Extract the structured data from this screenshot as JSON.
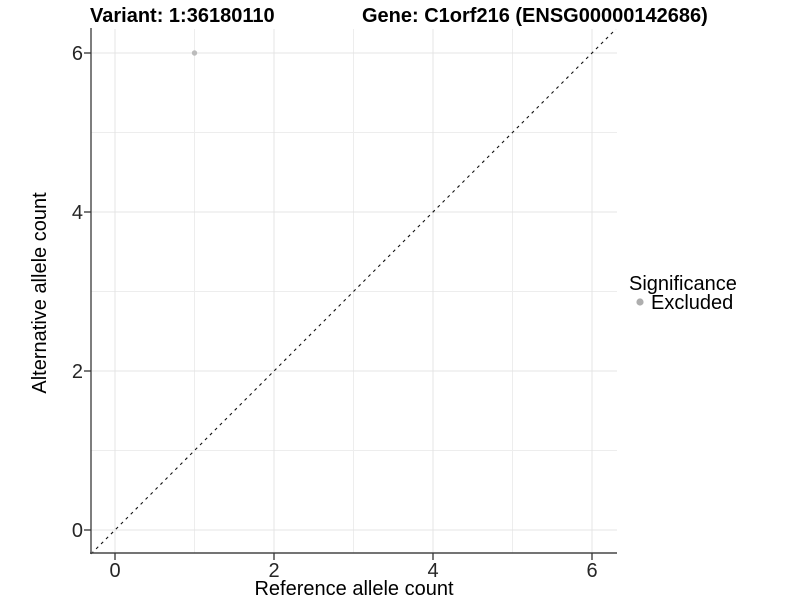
{
  "chart_data": {
    "type": "scatter",
    "titles": {
      "variant": "Variant: 1:36180110",
      "gene": "Gene: C1orf216 (ENSG00000142686)"
    },
    "xlabel": "Reference allele count",
    "ylabel": "Alternative allele count",
    "x_ticks": [
      {
        "label": "0",
        "value": 0
      },
      {
        "label": "2",
        "value": 2
      },
      {
        "label": "4",
        "value": 4
      },
      {
        "label": "6",
        "value": 6
      }
    ],
    "y_ticks": [
      {
        "label": "0",
        "value": 0
      },
      {
        "label": "2",
        "value": 2
      },
      {
        "label": "4",
        "value": 4
      },
      {
        "label": "6",
        "value": 6
      }
    ],
    "x_minor_values": [
      1,
      3,
      5
    ],
    "y_minor_values": [
      1,
      3,
      5
    ],
    "xlim": [
      -0.3,
      6.3
    ],
    "ylim": [
      -0.3,
      6.3
    ],
    "grid": true,
    "points": [
      {
        "x": 1,
        "y": 6,
        "significance": "Excluded"
      }
    ],
    "reference_line": {
      "kind": "identity",
      "style": "dashed"
    },
    "legend": {
      "title": "Significance",
      "position": "right",
      "entries": [
        {
          "label": "Excluded",
          "marker": "circle",
          "color": "#aeaeae"
        }
      ]
    },
    "colors": {
      "point": "#bcbcbc",
      "grid_major": "#e4e4e4",
      "grid_minor": "#ededed",
      "axis_line": "#474747",
      "tick_mark": "#333333",
      "reference_line": "#141414"
    }
  }
}
